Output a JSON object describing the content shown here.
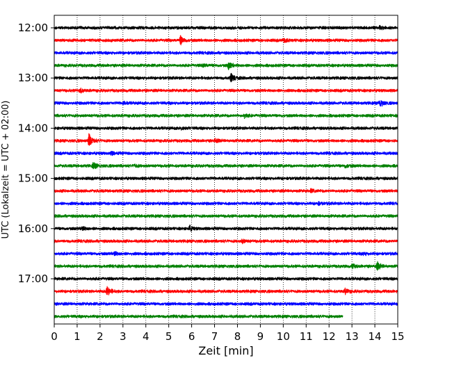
{
  "chart_data": {
    "type": "line",
    "title": "",
    "xlabel": "Zeit  [min]",
    "ylabel": "UTC (Lokalzeit = UTC + 02:00)",
    "xlim": [
      0,
      15
    ],
    "x_ticks": [
      "0",
      "1",
      "2",
      "3",
      "4",
      "5",
      "6",
      "7",
      "8",
      "9",
      "10",
      "11",
      "12",
      "13",
      "14",
      "15"
    ],
    "y_ticks": [
      "12:00",
      "13:00",
      "14:00",
      "15:00",
      "16:00",
      "17:00"
    ],
    "grid": "vertical dotted",
    "trace_interval_min": 15,
    "traces": [
      {
        "start": "12:00",
        "color": "#000000",
        "end_min": 15,
        "events": [
          {
            "t": 14.2,
            "amp": 0.3
          }
        ]
      },
      {
        "start": "12:15",
        "color": "#ff0000",
        "end_min": 15,
        "events": [
          {
            "t": 5.5,
            "amp": 1.0
          },
          {
            "t": 10.0,
            "amp": 0.5
          }
        ]
      },
      {
        "start": "12:30",
        "color": "#0000ff",
        "end_min": 15,
        "events": []
      },
      {
        "start": "12:45",
        "color": "#008000",
        "end_min": 15,
        "events": [
          {
            "t": 7.6,
            "amp": 0.8
          },
          {
            "t": 6.5,
            "amp": 0.3
          }
        ]
      },
      {
        "start": "13:00",
        "color": "#000000",
        "end_min": 15,
        "events": [
          {
            "t": 7.7,
            "amp": 0.9
          }
        ]
      },
      {
        "start": "13:15",
        "color": "#ff0000",
        "end_min": 15,
        "events": [
          {
            "t": 1.1,
            "amp": 0.5
          }
        ]
      },
      {
        "start": "13:30",
        "color": "#0000ff",
        "end_min": 15,
        "events": [
          {
            "t": 14.2,
            "amp": 0.9
          },
          {
            "t": 3.0,
            "amp": 0.3
          }
        ]
      },
      {
        "start": "13:45",
        "color": "#008000",
        "end_min": 15,
        "events": [
          {
            "t": 8.3,
            "amp": 0.4
          }
        ]
      },
      {
        "start": "14:00",
        "color": "#000000",
        "end_min": 15,
        "events": [
          {
            "t": 5.5,
            "amp": 0.3
          }
        ]
      },
      {
        "start": "14:15",
        "color": "#ff0000",
        "end_min": 15,
        "events": [
          {
            "t": 1.5,
            "amp": 1.5
          },
          {
            "t": 7.0,
            "amp": 0.4
          }
        ]
      },
      {
        "start": "14:30",
        "color": "#0000ff",
        "end_min": 15,
        "events": [
          {
            "t": 2.5,
            "amp": 0.3
          }
        ]
      },
      {
        "start": "14:45",
        "color": "#008000",
        "end_min": 15,
        "events": [
          {
            "t": 1.7,
            "amp": 0.8
          },
          {
            "t": 12.7,
            "amp": 0.4
          },
          {
            "t": 3.5,
            "amp": 0.3
          }
        ]
      },
      {
        "start": "15:00",
        "color": "#000000",
        "end_min": 15,
        "events": []
      },
      {
        "start": "15:15",
        "color": "#ff0000",
        "end_min": 15,
        "events": [
          {
            "t": 11.2,
            "amp": 0.3
          }
        ]
      },
      {
        "start": "15:30",
        "color": "#0000ff",
        "end_min": 15,
        "events": [
          {
            "t": 11.5,
            "amp": 0.3
          }
        ]
      },
      {
        "start": "15:45",
        "color": "#008000",
        "end_min": 15,
        "events": []
      },
      {
        "start": "16:00",
        "color": "#000000",
        "end_min": 15,
        "events": [
          {
            "t": 1.2,
            "amp": 0.5
          },
          {
            "t": 5.9,
            "amp": 0.6
          }
        ]
      },
      {
        "start": "16:15",
        "color": "#ff0000",
        "end_min": 15,
        "events": [
          {
            "t": 8.2,
            "amp": 0.4
          }
        ]
      },
      {
        "start": "16:30",
        "color": "#0000ff",
        "end_min": 15,
        "events": [
          {
            "t": 2.6,
            "amp": 0.5
          },
          {
            "t": 13.5,
            "amp": 0.3
          }
        ]
      },
      {
        "start": "16:45",
        "color": "#008000",
        "end_min": 15,
        "events": [
          {
            "t": 14.1,
            "amp": 0.9
          },
          {
            "t": 13.0,
            "amp": 0.4
          }
        ]
      },
      {
        "start": "17:00",
        "color": "#000000",
        "end_min": 15,
        "events": []
      },
      {
        "start": "17:15",
        "color": "#ff0000",
        "end_min": 15,
        "events": [
          {
            "t": 2.3,
            "amp": 1.2
          },
          {
            "t": 12.7,
            "amp": 0.6
          }
        ]
      },
      {
        "start": "17:30",
        "color": "#0000ff",
        "end_min": 15,
        "events": []
      },
      {
        "start": "17:45",
        "color": "#008000",
        "end_min": 12.6,
        "events": []
      }
    ]
  }
}
